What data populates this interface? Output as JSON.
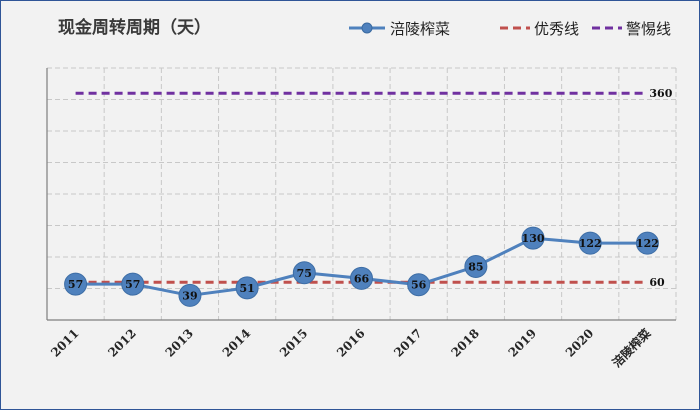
{
  "chart_data": {
    "type": "line",
    "title": "现金周转周期（天）",
    "categories": [
      "2011",
      "2012",
      "2013",
      "2014",
      "2015",
      "2016",
      "2017",
      "2018",
      "2019",
      "2020",
      "涪陵榨菜"
    ],
    "series": [
      {
        "name": "涪陵榨菜",
        "values": [
          57,
          57,
          39,
          51,
          75,
          66,
          56,
          85,
          130,
          122,
          122
        ],
        "color": "#4f81bd",
        "style": "solid-marker"
      },
      {
        "name": "优秀线",
        "value": 60,
        "label": "60",
        "color": "#c0504d",
        "style": "dashed"
      },
      {
        "name": "警惕线",
        "value": 360,
        "label": "360",
        "color": "#7030a0",
        "style": "dashed"
      }
    ],
    "xlabel": "",
    "ylabel": "",
    "ylim": [
      0,
      400
    ],
    "grid": true,
    "legend": "top-right"
  }
}
